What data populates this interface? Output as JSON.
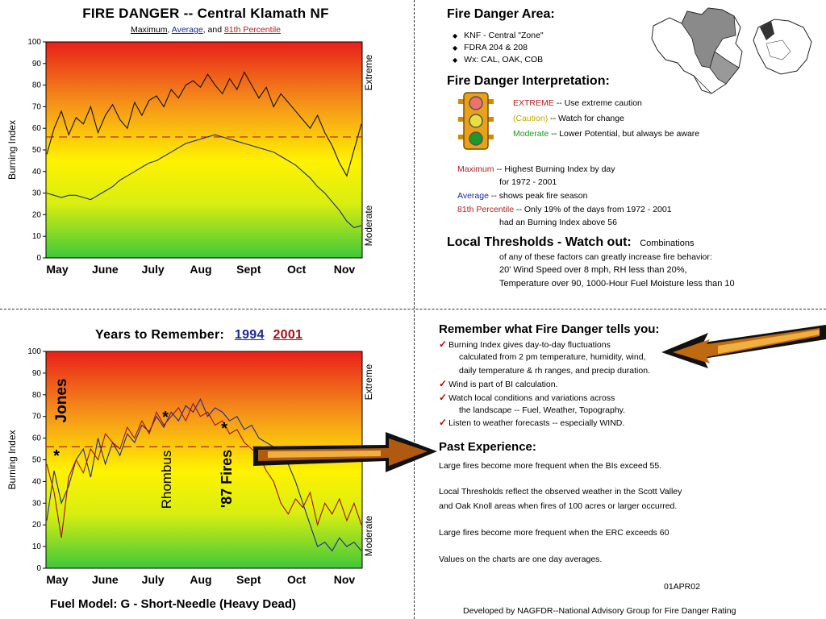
{
  "chart_data": [
    {
      "type": "line",
      "title": "FIRE DANGER -- Central Klamath NF",
      "subtitle": {
        "max": "Maximum",
        "avg": "Average",
        "and": "and",
        "pct": "81th Percentile"
      },
      "ylabel": "Burning Index",
      "ylim": [
        0,
        100
      ],
      "yticks": [
        0,
        10,
        20,
        30,
        40,
        50,
        60,
        70,
        80,
        90,
        100
      ],
      "month_labels": [
        "May",
        "June",
        "July",
        "Aug",
        "Sept",
        "Oct",
        "Nov"
      ],
      "right_labels": {
        "top": "Extreme",
        "bottom": "Moderate"
      },
      "reference_line": 56,
      "series": [
        {
          "name": "Maximum",
          "color": "#111111",
          "values": [
            48,
            60,
            68,
            57,
            65,
            62,
            70,
            58,
            66,
            71,
            64,
            60,
            72,
            66,
            73,
            75,
            70,
            78,
            74,
            80,
            82,
            79,
            85,
            80,
            76,
            83,
            78,
            86,
            80,
            74,
            79,
            70,
            76,
            72,
            68,
            64,
            60,
            66,
            58,
            52,
            44,
            38,
            50,
            62
          ]
        },
        {
          "name": "Average",
          "color": "#1a2a7a",
          "values": [
            30,
            29,
            28,
            29,
            29,
            28,
            27,
            29,
            31,
            33,
            36,
            38,
            40,
            42,
            44,
            45,
            47,
            49,
            51,
            53,
            54,
            55,
            56,
            57,
            56,
            55,
            54,
            53,
            52,
            51,
            50,
            49,
            47,
            45,
            43,
            40,
            37,
            33,
            30,
            26,
            22,
            17,
            14,
            15
          ]
        }
      ]
    },
    {
      "type": "line",
      "title": "Years to Remember:",
      "ylabel": "Burning Index",
      "ylim": [
        0,
        100
      ],
      "yticks": [
        0,
        10,
        20,
        30,
        40,
        50,
        60,
        70,
        80,
        90,
        100
      ],
      "month_labels": [
        "May",
        "June",
        "July",
        "Aug",
        "Sept",
        "Oct",
        "Nov"
      ],
      "right_labels": {
        "top": "Extreme",
        "bottom": "Moderate"
      },
      "reference_line": 56,
      "series": [
        {
          "name": "1994",
          "color": "#1a2a9a",
          "values": [
            22,
            45,
            30,
            38,
            50,
            55,
            42,
            60,
            48,
            58,
            52,
            62,
            58,
            66,
            63,
            70,
            65,
            72,
            68,
            75,
            72,
            78,
            70,
            74,
            72,
            68,
            70,
            64,
            66,
            60,
            58,
            56,
            50,
            48,
            40,
            30,
            20,
            10,
            12,
            8,
            14,
            10,
            12,
            8
          ]
        },
        {
          "name": "2001",
          "color": "#a01010",
          "values": [
            48,
            35,
            14,
            42,
            50,
            44,
            55,
            50,
            62,
            58,
            55,
            65,
            60,
            68,
            62,
            72,
            66,
            70,
            74,
            68,
            76,
            70,
            72,
            66,
            68,
            62,
            64,
            58,
            55,
            52,
            45,
            40,
            30,
            25,
            32,
            28,
            35,
            20,
            30,
            25,
            32,
            22,
            30,
            20
          ]
        }
      ],
      "annotations": [
        "Jones",
        "Rhombus",
        "'87 Fires"
      ],
      "footer": "Fuel Model: G - Short-Needle (Heavy Dead)"
    }
  ],
  "panel_tr": {
    "area_title": "Fire Danger Area:",
    "area_items": [
      "KNF - Central \"Zone\"",
      "FDRA 204 & 208",
      "Wx: CAL, OAK, COB"
    ],
    "interp_title": "Fire Danger Interpretation:",
    "extreme": "EXTREME",
    "extreme_text": "-- Use extreme caution",
    "caution": "(Caution)",
    "caution_text": "-- Watch for change",
    "moderate": "Moderate",
    "moderate_text": "-- Lower Potential, but always be aware",
    "max_label": "Maximum",
    "max_text1": "-- Highest Burning Index by day",
    "max_text2": "for 1972 - 2001",
    "avg_label": "Average",
    "avg_text": "-- shows peak fire season",
    "pct_label": "81th Percentile",
    "pct_text1": "-- Only 19% of the days from 1972 - 2001",
    "pct_text2": "had an Burning Index above 56",
    "thresh_title": "Local Thresholds - Watch out:",
    "thresh_inline": "Combinations",
    "thresh_1": "of any of these factors can greatly increase fire behavior:",
    "thresh_2": "20' Wind Speed over 8 mph, RH  less than 20%,",
    "thresh_3": "Temperature over 90, 1000-Hour Fuel Moisture less than 10"
  },
  "panel_br": {
    "remember_title": "Remember what Fire Danger tells you:",
    "r1a": "Burning Index gives day-to-day fluctuations",
    "r1b": "calculated from 2 pm temperature, humidity, wind,",
    "r1c": "daily temperature & rh ranges, and precip duration.",
    "r2": "Wind is part of BI calculation.",
    "r3a": "Watch local conditions and variations across",
    "r3b": "the landscape -- Fuel, Weather, Topography.",
    "r4": "Listen to weather forecasts -- especially WIND.",
    "past_title": "Past Experience:",
    "p1": "Large fires become more frequent when the BIs exceed 55.",
    "p2a": "Local Thresholds reflect the observed weather in the Scott Valley",
    "p2b": "and Oak Knoll areas when fires of 100 acres or larger occurred.",
    "p3": "Large fires become more frequent when the ERC exceeds 60",
    "p4": "Values on the charts are one day averages.",
    "date": "01APR02",
    "credit": "Developed by NAGFDR--National Advisory Group for Fire Danger Rating"
  }
}
